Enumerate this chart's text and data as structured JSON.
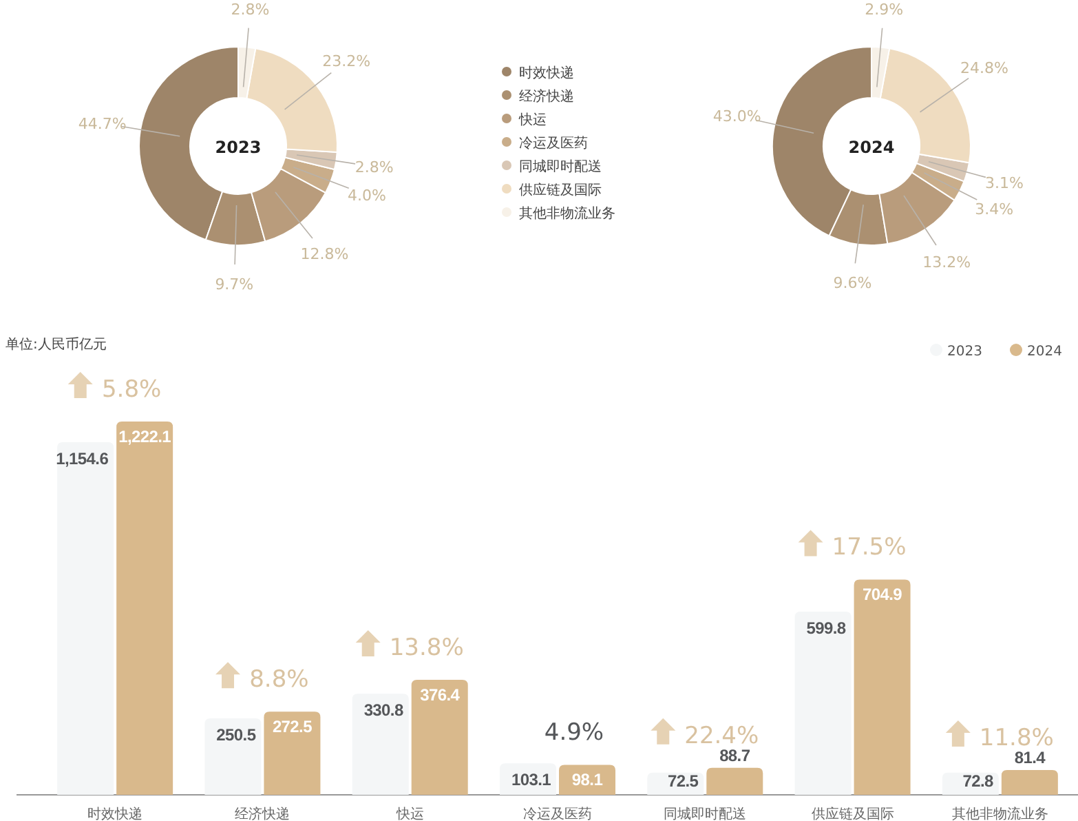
{
  "chart_data": [
    {
      "type": "donut",
      "title": "2023",
      "categories": [
        "时效快递",
        "经济快递",
        "快运",
        "冷运及医药",
        "同城即时配送",
        "供应链及国际",
        "其他非物流业务"
      ],
      "values": [
        44.7,
        9.7,
        12.8,
        4.0,
        2.8,
        23.2,
        2.8
      ],
      "colors": [
        "#9e8569",
        "#ab9071",
        "#b99c7c",
        "#c9ad8a",
        "#d9c7b5",
        "#efdcc0",
        "#f7f1e8"
      ],
      "value_labels": [
        "44.7%",
        "9.7%",
        "12.8%",
        "4.0%",
        "2.8%",
        "23.2%",
        "2.8%"
      ],
      "legend": "right"
    },
    {
      "type": "donut",
      "title": "2024",
      "values": [
        43.0,
        9.6,
        13.2,
        3.4,
        3.1,
        24.8,
        2.9
      ],
      "colors": [
        "#9e8569",
        "#ab9071",
        "#b99c7c",
        "#c9ad8a",
        "#d9c7b5",
        "#efdcc0",
        "#f7f1e8"
      ],
      "value_labels": [
        "43.0%",
        "9.6%",
        "13.2%",
        "3.4%",
        "3.1%",
        "24.8%",
        "2.9%"
      ]
    },
    {
      "type": "bar",
      "ylabel": "单位:人民币亿元",
      "categories": [
        "时效快递",
        "经济快递",
        "快运",
        "冷运及医药",
        "同城即时配送",
        "供应链及国际",
        "其他非物流业务"
      ],
      "series": [
        {
          "name": "2023",
          "color": "#f4f6f7",
          "values": [
            1154.6,
            250.5,
            330.8,
            103.1,
            72.5,
            599.8,
            72.8
          ],
          "value_labels": [
            "1,154.6",
            "250.5",
            "330.8",
            "103.1",
            "72.5",
            "599.8",
            "72.8"
          ]
        },
        {
          "name": "2024",
          "color": "#d9b98c",
          "values": [
            1222.1,
            272.5,
            376.4,
            98.1,
            88.7,
            704.9,
            81.4
          ],
          "value_labels": [
            "1,222.1",
            "272.5",
            "376.4",
            "98.1",
            "88.7",
            "704.9",
            "81.4"
          ]
        }
      ],
      "annotations": [
        {
          "text": "5.8%",
          "x": "时效快递",
          "y": 1222.1
        },
        {
          "text": "8.8%",
          "x": "经济快递",
          "y": 272.5
        },
        {
          "text": "13.8%",
          "x": "快运",
          "y": 376.4
        },
        {
          "text": "4.9%",
          "x": "冷运及医药",
          "y": 98.1
        },
        {
          "text": "22.4%",
          "x": "同城即时配送",
          "y": 88.7
        },
        {
          "text": "17.5%",
          "x": "供应链及国际",
          "y": 704.9
        },
        {
          "text": "11.8%",
          "x": "其他非物流业务",
          "y": 81.4
        }
      ],
      "legend": "top right"
    }
  ]
}
